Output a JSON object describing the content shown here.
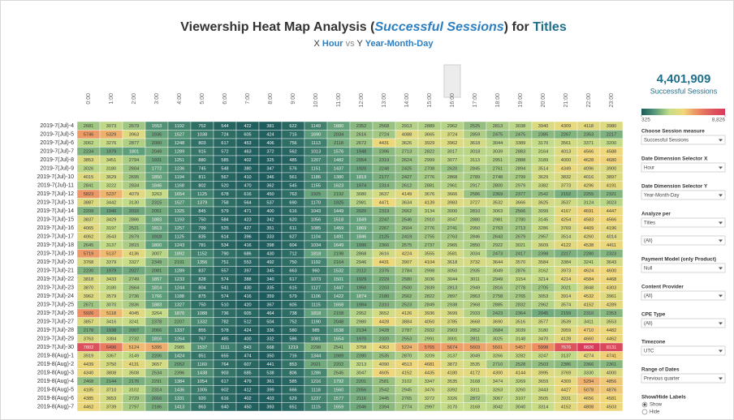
{
  "title": {
    "prefix": "Viewership Heat Map Analysis (",
    "measure": "Successful Sessions",
    "middle": ") for ",
    "dimension": "Titles"
  },
  "subtitle": {
    "x_label": "X",
    "x": "Hour",
    "vs": "vs",
    "y_label": "Y",
    "y": "Year-Month-Day"
  },
  "chart_data": {
    "type": "heatmap",
    "x": [
      "0:00",
      "1:00",
      "2:00",
      "3:00",
      "4:00",
      "5:00",
      "6:00",
      "7:00",
      "8:00",
      "9:00",
      "10:00",
      "11:00",
      "12:00",
      "13:00",
      "14:00",
      "15:00",
      "16:00",
      "17:00",
      "18:00",
      "19:00",
      "20:00",
      "21:00",
      "22:00",
      "23:00"
    ],
    "highlighted_x": "16:00",
    "y": [
      "2019-7(Jul)-4",
      "2019-7(Jul)-5",
      "2019-7(Jul)-6",
      "2019-7(Jul)-7",
      "2019-7(Jul)-8",
      "2019-7(Jul)-9",
      "2019-7(Jul)-10",
      "2019-7(Jul)-11",
      "2019-7(Jul)-12",
      "2019-7(Jul)-13",
      "2019-7(Jul)-14",
      "2019-7(Jul)-15",
      "2019-7(Jul)-16",
      "2019-7(Jul)-17",
      "2019-7(Jul)-18",
      "2019-7(Jul)-19",
      "2019-7(Jul)-20",
      "2019-7(Jul)-21",
      "2019-7(Jul)-22",
      "2019-7(Jul)-23",
      "2019-7(Jul)-24",
      "2019-7(Jul)-25",
      "2019-7(Jul)-26",
      "2019-7(Jul)-27",
      "2019-7(Jul)-28",
      "2019-7(Jul)-29",
      "2019-7(Jul)-30",
      "2019-8(Aug)-1",
      "2019-8(Aug)-2",
      "2019-8(Aug)-3",
      "2019-8(Aug)-4",
      "2019-8(Aug)-5",
      "2019-8(Aug)-6",
      "2019-8(Aug)-7"
    ],
    "values": [
      [
        2681,
        3073,
        2679,
        1553,
        1192,
        752,
        544,
        422,
        381,
        622,
        1149,
        1880,
        2352,
        2568,
        2913,
        2889,
        2962,
        2525,
        2813,
        3038,
        3940,
        4309,
        4118,
        3980
      ],
      [
        5746,
        5329,
        3963,
        1936,
        1527,
        1038,
        724,
        605,
        424,
        715,
        1690,
        2034,
        2616,
        2724,
        4088,
        3665,
        3724,
        2859,
        2475,
        2475,
        2385,
        2267,
        2353,
        2217
      ],
      [
        3062,
        3276,
        2877,
        2000,
        1248,
        803,
        617,
        453,
        406,
        756,
        1113,
        2118,
        2672,
        4431,
        3626,
        3929,
        3962,
        3618,
        3044,
        3389,
        3170,
        3561,
        3371,
        3200
      ],
      [
        2234,
        1979,
        1801,
        2049,
        1289,
        915,
        572,
        463,
        372,
        562,
        1013,
        1576,
        1948,
        2396,
        2713,
        2822,
        3017,
        3018,
        3039,
        2883,
        3164,
        4013,
        4566,
        4588
      ],
      [
        3853,
        3451,
        2794,
        1931,
        1251,
        880,
        585,
        402,
        325,
        485,
        1207,
        1482,
        2054,
        2319,
        2624,
        2999,
        3077,
        3113,
        2951,
        2888,
        3189,
        4000,
        4628,
        4680
      ],
      [
        3026,
        3180,
        2604,
        1772,
        1236,
        745,
        548,
        380,
        347,
        576,
        1151,
        1437,
        1920,
        2248,
        2425,
        2708,
        2620,
        2845,
        2761,
        2894,
        3514,
        4349,
        4096,
        3900
      ],
      [
        4015,
        3629,
        2695,
        1850,
        1194,
        811,
        567,
        410,
        346,
        561,
        1186,
        1380,
        1819,
        2177,
        2427,
        2776,
        2868,
        2789,
        2748,
        2799,
        3629,
        3832,
        4016,
        3897
      ],
      [
        2841,
        3222,
        2834,
        1846,
        1168,
        802,
        520,
        470,
        362,
        545,
        1155,
        1623,
        1974,
        2314,
        2612,
        2881,
        2961,
        2917,
        2800,
        2979,
        3382,
        3773,
        4296,
        4191
      ],
      [
        5823,
        5237,
        4079,
        3263,
        1654,
        1125,
        678,
        616,
        450,
        763,
        1925,
        2192,
        3080,
        3637,
        4149,
        3676,
        3666,
        2586,
        2369,
        2377,
        2542,
        2152,
        2255,
        2321
      ],
      [
        3887,
        3442,
        3130,
        2315,
        1527,
        1379,
        758,
        564,
        537,
        690,
        1170,
        1925,
        2981,
        4471,
        3634,
        4139,
        3983,
        3727,
        3532,
        3666,
        3625,
        3537,
        3124,
        3023
      ],
      [
        2209,
        1940,
        2016,
        2051,
        1325,
        845,
        579,
        471,
        400,
        616,
        1043,
        1449,
        2020,
        2319,
        2662,
        3134,
        3000,
        2810,
        3063,
        2566,
        3099,
        4167,
        4691,
        4447
      ],
      [
        3837,
        3429,
        2886,
        1883,
        1193,
        750,
        584,
        423,
        342,
        620,
        1056,
        1518,
        1849,
        2247,
        2546,
        2910,
        3047,
        2880,
        2981,
        2780,
        3145,
        4254,
        4583,
        4566
      ],
      [
        4065,
        3197,
        2521,
        1813,
        1257,
        799,
        525,
        427,
        351,
        611,
        1085,
        1459,
        1869,
        2267,
        2604,
        2776,
        2741,
        2950,
        2763,
        2713,
        3286,
        3769,
        4409,
        4196
      ],
      [
        4062,
        3543,
        2679,
        1918,
        1125,
        835,
        614,
        396,
        333,
        627,
        1104,
        1491,
        1846,
        2125,
        2419,
        2755,
        2763,
        2846,
        2643,
        2679,
        2957,
        3514,
        4260,
        4014
      ],
      [
        2645,
        3137,
        2815,
        1800,
        1243,
        781,
        534,
        416,
        398,
        604,
        1034,
        1649,
        1990,
        2366,
        2575,
        2737,
        2965,
        2850,
        2922,
        3021,
        3609,
        4122,
        4538,
        4411
      ],
      [
        5719,
        5137,
        4136,
        3007,
        1892,
        1152,
        790,
        686,
        430,
        712,
        1818,
        2198,
        2868,
        3616,
        4224,
        3555,
        3581,
        3034,
        2473,
        2417,
        2398,
        2217,
        2280,
        2323
      ],
      [
        3768,
        3379,
        3327,
        2349,
        2191,
        1356,
        751,
        553,
        492,
        750,
        1192,
        2164,
        2946,
        4431,
        3907,
        4104,
        3618,
        3732,
        3644,
        3570,
        3584,
        3384,
        3241,
        3643
      ],
      [
        2230,
        1979,
        2027,
        2081,
        1289,
        837,
        557,
        397,
        345,
        663,
        960,
        1532,
        2112,
        2376,
        2784,
        2998,
        3050,
        2935,
        3049,
        2876,
        3162,
        3973,
        4624,
        4600
      ],
      [
        3818,
        3433,
        2749,
        1857,
        1233,
        828,
        574,
        388,
        340,
        617,
        1073,
        1501,
        1929,
        2229,
        2580,
        3036,
        3044,
        3011,
        2949,
        3154,
        3214,
        4214,
        4584,
        4468
      ],
      [
        3870,
        3180,
        2664,
        1814,
        1244,
        804,
        541,
        430,
        335,
        615,
        1127,
        1447,
        1950,
        2203,
        2500,
        2839,
        2813,
        2949,
        2816,
        2778,
        2705,
        3021,
        3848,
        4303
      ],
      [
        3962,
        3579,
        2736,
        1766,
        1188,
        875,
        574,
        416,
        359,
        579,
        1106,
        1422,
        1874,
        2180,
        2562,
        2822,
        2897,
        2863,
        2758,
        2765,
        3053,
        3914,
        4532,
        3961
      ],
      [
        2671,
        3070,
        2836,
        1883,
        1327,
        750,
        510,
        420,
        367,
        605,
        1115,
        1658,
        1984,
        2310,
        2523,
        2849,
        2938,
        2968,
        2885,
        2832,
        2962,
        3574,
        4152,
        4289
      ],
      [
        5926,
        5118,
        4045,
        3264,
        1870,
        1088,
        736,
        605,
        464,
        738,
        1818,
        2158,
        2952,
        3652,
        4126,
        3936,
        3699,
        2933,
        2423,
        2364,
        2045,
        2159,
        2310,
        2353
      ],
      [
        3857,
        3416,
        3241,
        2378,
        2207,
        1332,
        782,
        512,
        504,
        752,
        1190,
        2048,
        2980,
        4428,
        3884,
        4050,
        3785,
        3668,
        3690,
        3516,
        3577,
        3539,
        3411,
        3553
      ],
      [
        2178,
        1938,
        2007,
        2066,
        1337,
        855,
        578,
        424,
        336,
        580,
        985,
        1538,
        2134,
        2428,
        2787,
        2932,
        2903,
        2852,
        2684,
        3039,
        3180,
        3959,
        4710,
        4482
      ],
      [
        3763,
        3384,
        2732,
        1816,
        1264,
        767,
        485,
        400,
        332,
        586,
        1081,
        1654,
        1970,
        2320,
        2553,
        2991,
        3001,
        2811,
        3025,
        3148,
        3470,
        4128,
        4660,
        4462
      ],
      [
        7802,
        6496,
        5124,
        5395,
        2985,
        1537,
        1111,
        843,
        668,
        1219,
        2298,
        2541,
        3758,
        4363,
        5224,
        5765,
        5674,
        5603,
        5501,
        5457,
        5998,
        7676,
        8826,
        8131
      ],
      [
        3919,
        3367,
        3149,
        2206,
        1424,
        851,
        655,
        474,
        350,
        716,
        1344,
        1989,
        2280,
        2535,
        2870,
        3209,
        3137,
        3049,
        3266,
        3282,
        3247,
        3137,
        4274,
        4741
      ],
      [
        4439,
        3750,
        4131,
        3657,
        2052,
        1160,
        764,
        607,
        441,
        853,
        2021,
        2202,
        3213,
        4090,
        4513,
        4681,
        3872,
        3535,
        2710,
        2528,
        2503,
        2386,
        2366,
        2361
      ],
      [
        4340,
        3808,
        3508,
        2534,
        2396,
        1438,
        903,
        685,
        538,
        806,
        1286,
        2545,
        3047,
        4605,
        4152,
        4435,
        4180,
        4172,
        4300,
        4144,
        3995,
        3769,
        3330,
        4000
      ],
      [
        2468,
        2144,
        2176,
        2291,
        1384,
        1054,
        617,
        479,
        361,
        585,
        1216,
        1792,
        2201,
        2581,
        3102,
        3347,
        3535,
        3168,
        3474,
        3269,
        3659,
        4309,
        5294,
        4856
      ],
      [
        4185,
        3710,
        3102,
        2314,
        1436,
        1005,
        602,
        412,
        399,
        666,
        1118,
        1560,
        2056,
        2542,
        2945,
        3476,
        3392,
        3311,
        3263,
        3260,
        3443,
        4427,
        5078,
        4876
      ],
      [
        4385,
        3653,
        2729,
        2016,
        1331,
        920,
        616,
        402,
        403,
        629,
        1237,
        1577,
        2116,
        2445,
        2765,
        3272,
        3326,
        2872,
        3067,
        3107,
        3505,
        3931,
        4656,
        4581
      ],
      [
        4462,
        3739,
        2797,
        2186,
        1413,
        863,
        640,
        450,
        393,
        651,
        1115,
        1659,
        2046,
        2394,
        2774,
        2997,
        3170,
        3168,
        3042,
        3040,
        3314,
        4152,
        4808,
        4503
      ]
    ],
    "colors": [
      "#1c5a5c",
      "#5a9c7a",
      "#c4dc88",
      "#f0d87a",
      "#ec8e62",
      "#de5a5e",
      "#d93a5a"
    ],
    "colorlim": [
      325,
      8826
    ],
    "colorticks": [
      325,
      {
        "value": 8826,
        "label": "8,826"
      }
    ]
  },
  "kpi": {
    "value": "4,401,909",
    "label": "Successful Sessions"
  },
  "filters": [
    {
      "label": "Choose Session measure",
      "values": [
        "Successful Sessions"
      ]
    },
    {
      "label": "Date Dimension Selector X",
      "values": [
        "Hour"
      ]
    },
    {
      "label": "Date Dimension Selector Y",
      "values": [
        "Year-Month-Day"
      ]
    },
    {
      "label": "Analyze per",
      "values": [
        "Titles",
        "(All)"
      ]
    },
    {
      "label": "Payment Model (only Product)",
      "values": [
        "Null"
      ]
    },
    {
      "label": "Content Provider",
      "values": [
        "(All)"
      ]
    },
    {
      "label": "CPE Type",
      "values": [
        "(All)"
      ]
    },
    {
      "label": "Timezone",
      "values": [
        "UTC"
      ]
    },
    {
      "label": "Range of Dates",
      "values": [
        "Previous quarter"
      ]
    }
  ],
  "labels_toggle": {
    "label": "Show/Hide Labels",
    "options": [
      "Show",
      "Hide"
    ],
    "selected": "Show"
  }
}
